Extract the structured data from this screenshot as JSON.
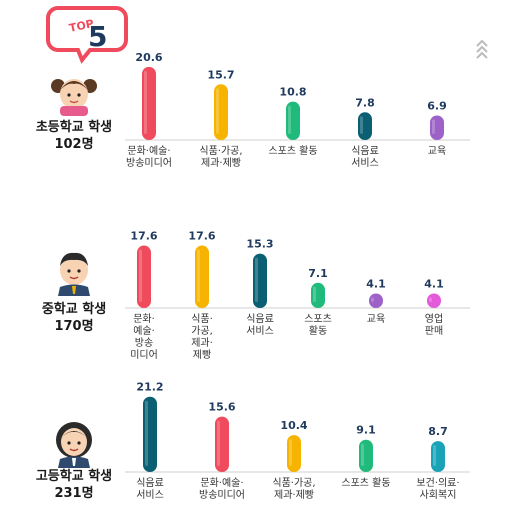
{
  "badge": {
    "top_text": "TOP",
    "number": "5"
  },
  "colors": {
    "red": "#ef4b5c",
    "yellow": "#f6b400",
    "green": "#20bb7c",
    "navy": "#0b5f73",
    "purple": "#9d62c8",
    "pink": "#e45bd9",
    "teal": "#1aa3b7",
    "badge_red": "#ef4b5c",
    "badge_dark": "#1f3a5f"
  },
  "chart_data": [
    {
      "type": "bar",
      "group_label": [
        "초등학교 학생",
        "102명"
      ],
      "avatar": "girl-icon",
      "categories": [
        "문화·예술·\n방송미디어",
        "식품·가공,\n제과·제빵",
        "스포츠 활동",
        "식음료\n서비스",
        "교육"
      ],
      "values": [
        20.6,
        15.7,
        10.8,
        7.8,
        6.9
      ],
      "bar_colors": [
        "red",
        "yellow",
        "green",
        "navy",
        "purple"
      ]
    },
    {
      "type": "bar",
      "group_label": [
        "중학교 학생",
        "170명"
      ],
      "avatar": "boy-icon",
      "categories": [
        "문화·\n예술·\n방송\n미디어",
        "식품·\n가공,\n제과·\n제빵",
        "식음료\n서비스",
        "스포츠\n활동",
        "교육",
        "영업\n판매"
      ],
      "values": [
        17.6,
        17.6,
        15.3,
        7.1,
        4.1,
        4.1
      ],
      "bar_colors": [
        "red",
        "yellow",
        "navy",
        "green",
        "purple",
        "pink"
      ]
    },
    {
      "type": "bar",
      "group_label": [
        "고등학교 학생",
        "231명"
      ],
      "avatar": "highschool-girl-icon",
      "categories": [
        "식음료\n서비스",
        "문화·예술·\n방송미디어",
        "식품·가공,\n제과·제빵",
        "스포츠 활동",
        "보건·의료·\n사회복지"
      ],
      "values": [
        21.2,
        15.6,
        10.4,
        9.1,
        8.7
      ],
      "bar_colors": [
        "navy",
        "red",
        "yellow",
        "green",
        "teal"
      ]
    }
  ]
}
